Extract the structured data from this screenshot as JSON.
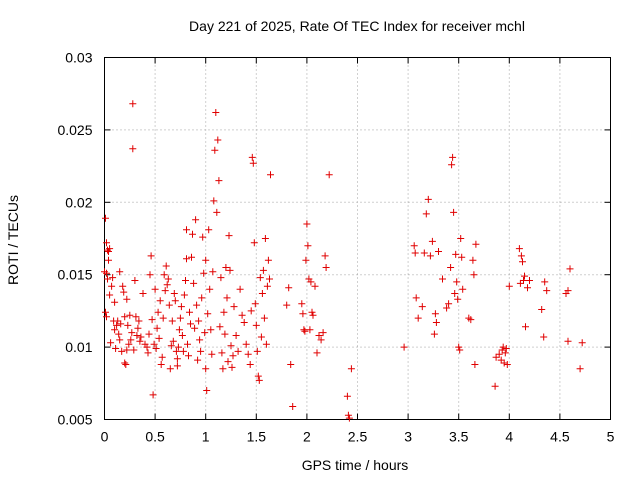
{
  "chart_data": {
    "type": "scatter",
    "title": "Day 221 of 2025, Rate Of TEC Index for receiver mchl",
    "xlabel": "GPS time / hours",
    "ylabel": "ROTI / TECUs",
    "xlim": [
      0,
      5
    ],
    "ylim": [
      0.005,
      0.03
    ],
    "grid": true,
    "marker": "plus",
    "color": "#e00000",
    "xticks": [
      {
        "value": 0,
        "label": "0"
      },
      {
        "value": 0.5,
        "label": "0.5"
      },
      {
        "value": 1,
        "label": "1"
      },
      {
        "value": 1.5,
        "label": "1.5"
      },
      {
        "value": 2,
        "label": "2"
      },
      {
        "value": 2.5,
        "label": "2.5"
      },
      {
        "value": 3,
        "label": "3"
      },
      {
        "value": 3.5,
        "label": "3.5"
      },
      {
        "value": 4,
        "label": "4"
      },
      {
        "value": 4.5,
        "label": "4.5"
      },
      {
        "value": 5,
        "label": "5"
      }
    ],
    "yticks": [
      {
        "value": 0.005,
        "label": "0.005"
      },
      {
        "value": 0.01,
        "label": "0.01"
      },
      {
        "value": 0.015,
        "label": "0.015"
      },
      {
        "value": 0.02,
        "label": "0.02"
      },
      {
        "value": 0.025,
        "label": "0.025"
      },
      {
        "value": 0.03,
        "label": "0.03"
      }
    ],
    "series": [
      {
        "name": "ROTI",
        "points": [
          [
            0.0,
            0.0152
          ],
          [
            0.01,
            0.0189
          ],
          [
            0.01,
            0.0124
          ],
          [
            0.02,
            0.0121
          ],
          [
            0.02,
            0.0151
          ],
          [
            0.02,
            0.0172
          ],
          [
            0.03,
            0.0167
          ],
          [
            0.03,
            0.0147
          ],
          [
            0.04,
            0.016
          ],
          [
            0.04,
            0.0166
          ],
          [
            0.05,
            0.0136
          ],
          [
            0.05,
            0.0168
          ],
          [
            0.06,
            0.0103
          ],
          [
            0.07,
            0.0142
          ],
          [
            0.08,
            0.0148
          ],
          [
            0.09,
            0.0118
          ],
          [
            0.1,
            0.0112
          ],
          [
            0.1,
            0.0131
          ],
          [
            0.11,
            0.0099
          ],
          [
            0.12,
            0.0115
          ],
          [
            0.13,
            0.0118
          ],
          [
            0.14,
            0.0109
          ],
          [
            0.15,
            0.0105
          ],
          [
            0.15,
            0.0152
          ],
          [
            0.16,
            0.0116
          ],
          [
            0.17,
            0.0097
          ],
          [
            0.18,
            0.0142
          ],
          [
            0.19,
            0.0138
          ],
          [
            0.2,
            0.0089
          ],
          [
            0.2,
            0.0121
          ],
          [
            0.21,
            0.0088
          ],
          [
            0.22,
            0.0133
          ],
          [
            0.22,
            0.0098
          ],
          [
            0.23,
            0.0115
          ],
          [
            0.24,
            0.0102
          ],
          [
            0.25,
            0.0122
          ],
          [
            0.26,
            0.0105
          ],
          [
            0.27,
            0.011
          ],
          [
            0.28,
            0.0268
          ],
          [
            0.28,
            0.0237
          ],
          [
            0.29,
            0.0098
          ],
          [
            0.3,
            0.0146
          ],
          [
            0.31,
            0.0121
          ],
          [
            0.32,
            0.0108
          ],
          [
            0.33,
            0.0113
          ],
          [
            0.34,
            0.0118
          ],
          [
            0.35,
            0.0104
          ],
          [
            0.36,
            0.0107
          ],
          [
            0.38,
            0.0137
          ],
          [
            0.4,
            0.0102
          ],
          [
            0.42,
            0.01
          ],
          [
            0.43,
            0.0096
          ],
          [
            0.44,
            0.0109
          ],
          [
            0.45,
            0.015
          ],
          [
            0.46,
            0.0163
          ],
          [
            0.47,
            0.0119
          ],
          [
            0.48,
            0.0067
          ],
          [
            0.49,
            0.0102
          ],
          [
            0.5,
            0.014
          ],
          [
            0.51,
            0.0099
          ],
          [
            0.52,
            0.0113
          ],
          [
            0.53,
            0.0124
          ],
          [
            0.54,
            0.0106
          ],
          [
            0.55,
            0.0132
          ],
          [
            0.56,
            0.0088
          ],
          [
            0.57,
            0.0093
          ],
          [
            0.58,
            0.012
          ],
          [
            0.59,
            0.015
          ],
          [
            0.6,
            0.0139
          ],
          [
            0.61,
            0.0156
          ],
          [
            0.62,
            0.0143
          ],
          [
            0.63,
            0.0147
          ],
          [
            0.64,
            0.0129
          ],
          [
            0.65,
            0.0085
          ],
          [
            0.66,
            0.0101
          ],
          [
            0.67,
            0.0118
          ],
          [
            0.68,
            0.0104
          ],
          [
            0.69,
            0.0137
          ],
          [
            0.7,
            0.0132
          ],
          [
            0.71,
            0.0097
          ],
          [
            0.72,
            0.0092
          ],
          [
            0.72,
            0.0087
          ],
          [
            0.73,
            0.01
          ],
          [
            0.74,
            0.0112
          ],
          [
            0.75,
            0.012
          ],
          [
            0.76,
            0.0128
          ],
          [
            0.77,
            0.0108
          ],
          [
            0.78,
            0.0097
          ],
          [
            0.79,
            0.0136
          ],
          [
            0.8,
            0.0146
          ],
          [
            0.81,
            0.0181
          ],
          [
            0.81,
            0.0161
          ],
          [
            0.82,
            0.0102
          ],
          [
            0.83,
            0.0094
          ],
          [
            0.84,
            0.0124
          ],
          [
            0.85,
            0.0116
          ],
          [
            0.86,
            0.0162
          ],
          [
            0.87,
            0.0178
          ],
          [
            0.88,
            0.0144
          ],
          [
            0.89,
            0.0113
          ],
          [
            0.9,
            0.0188
          ],
          [
            0.91,
            0.0129
          ],
          [
            0.92,
            0.0091
          ],
          [
            0.93,
            0.0118
          ],
          [
            0.94,
            0.0105
          ],
          [
            0.95,
            0.0097
          ],
          [
            0.96,
            0.0134
          ],
          [
            0.97,
            0.0176
          ],
          [
            0.98,
            0.0151
          ],
          [
            0.99,
            0.011
          ],
          [
            1.0,
            0.016
          ],
          [
            1.0,
            0.0085
          ],
          [
            1.01,
            0.007
          ],
          [
            1.02,
            0.0123
          ],
          [
            1.03,
            0.0181
          ],
          [
            1.04,
            0.014
          ],
          [
            1.05,
            0.0112
          ],
          [
            1.06,
            0.0095
          ],
          [
            1.07,
            0.0152
          ],
          [
            1.08,
            0.0201
          ],
          [
            1.09,
            0.0236
          ],
          [
            1.1,
            0.0262
          ],
          [
            1.11,
            0.0193
          ],
          [
            1.12,
            0.0243
          ],
          [
            1.13,
            0.0215
          ],
          [
            1.14,
            0.0114
          ],
          [
            1.15,
            0.0148
          ],
          [
            1.16,
            0.0096
          ],
          [
            1.17,
            0.0085
          ],
          [
            1.18,
            0.0124
          ],
          [
            1.19,
            0.0109
          ],
          [
            1.2,
            0.0155
          ],
          [
            1.21,
            0.0134
          ],
          [
            1.22,
            0.009
          ],
          [
            1.23,
            0.0177
          ],
          [
            1.24,
            0.0153
          ],
          [
            1.25,
            0.0101
          ],
          [
            1.26,
            0.0086
          ],
          [
            1.27,
            0.0094
          ],
          [
            1.28,
            0.0128
          ],
          [
            1.3,
            0.0108
          ],
          [
            1.32,
            0.0097
          ],
          [
            1.34,
            0.014
          ],
          [
            1.36,
            0.0122
          ],
          [
            1.38,
            0.0117
          ],
          [
            1.4,
            0.0102
          ],
          [
            1.42,
            0.0095
          ],
          [
            1.44,
            0.0088
          ],
          [
            1.45,
            0.0125
          ],
          [
            1.46,
            0.0231
          ],
          [
            1.47,
            0.0227
          ],
          [
            1.48,
            0.0172
          ],
          [
            1.49,
            0.013
          ],
          [
            1.5,
            0.0115
          ],
          [
            1.51,
            0.0097
          ],
          [
            1.52,
            0.008
          ],
          [
            1.53,
            0.0077
          ],
          [
            1.54,
            0.0148
          ],
          [
            1.55,
            0.0107
          ],
          [
            1.56,
            0.0137
          ],
          [
            1.57,
            0.0153
          ],
          [
            1.58,
            0.012
          ],
          [
            1.59,
            0.0175
          ],
          [
            1.6,
            0.0102
          ],
          [
            1.61,
            0.0142
          ],
          [
            1.62,
            0.016
          ],
          [
            1.63,
            0.0147
          ],
          [
            1.64,
            0.0219
          ],
          [
            1.8,
            0.0129
          ],
          [
            1.82,
            0.0141
          ],
          [
            1.84,
            0.0088
          ],
          [
            1.86,
            0.0059
          ],
          [
            1.95,
            0.013
          ],
          [
            1.96,
            0.0123
          ],
          [
            1.97,
            0.0112
          ],
          [
            1.98,
            0.0111
          ],
          [
            1.99,
            0.016
          ],
          [
            2.0,
            0.0185
          ],
          [
            2.01,
            0.017
          ],
          [
            2.02,
            0.0147
          ],
          [
            2.03,
            0.0112
          ],
          [
            2.04,
            0.0145
          ],
          [
            2.05,
            0.0124
          ],
          [
            2.06,
            0.0122
          ],
          [
            2.08,
            0.0142
          ],
          [
            2.1,
            0.0096
          ],
          [
            2.12,
            0.0108
          ],
          [
            2.14,
            0.0105
          ],
          [
            2.16,
            0.011
          ],
          [
            2.18,
            0.0163
          ],
          [
            2.19,
            0.0155
          ],
          [
            2.22,
            0.0219
          ],
          [
            2.4,
            0.0066
          ],
          [
            2.41,
            0.0053
          ],
          [
            2.42,
            0.0051
          ],
          [
            2.44,
            0.0085
          ],
          [
            2.96,
            0.01
          ],
          [
            3.06,
            0.017
          ],
          [
            3.07,
            0.0165
          ],
          [
            3.08,
            0.0134
          ],
          [
            3.1,
            0.012
          ],
          [
            3.14,
            0.0128
          ],
          [
            3.16,
            0.0165
          ],
          [
            3.18,
            0.0192
          ],
          [
            3.2,
            0.0202
          ],
          [
            3.22,
            0.0163
          ],
          [
            3.24,
            0.0173
          ],
          [
            3.26,
            0.0109
          ],
          [
            3.27,
            0.0123
          ],
          [
            3.28,
            0.0117
          ],
          [
            3.3,
            0.0166
          ],
          [
            3.34,
            0.0147
          ],
          [
            3.38,
            0.0127
          ],
          [
            3.4,
            0.013
          ],
          [
            3.42,
            0.0155
          ],
          [
            3.43,
            0.0226
          ],
          [
            3.44,
            0.0231
          ],
          [
            3.45,
            0.0193
          ],
          [
            3.46,
            0.0137
          ],
          [
            3.47,
            0.0164
          ],
          [
            3.48,
            0.0145
          ],
          [
            3.49,
            0.0133
          ],
          [
            3.5,
            0.01
          ],
          [
            3.51,
            0.0098
          ],
          [
            3.52,
            0.0175
          ],
          [
            3.53,
            0.0162
          ],
          [
            3.54,
            0.014
          ],
          [
            3.6,
            0.012
          ],
          [
            3.62,
            0.0119
          ],
          [
            3.64,
            0.016
          ],
          [
            3.65,
            0.015
          ],
          [
            3.66,
            0.0088
          ],
          [
            3.67,
            0.0171
          ],
          [
            3.86,
            0.0073
          ],
          [
            3.87,
            0.0093
          ],
          [
            3.9,
            0.0095
          ],
          [
            3.92,
            0.0091
          ],
          [
            3.93,
            0.0098
          ],
          [
            3.94,
            0.01
          ],
          [
            3.95,
            0.0089
          ],
          [
            3.96,
            0.0096
          ],
          [
            3.97,
            0.0099
          ],
          [
            3.98,
            0.0088
          ],
          [
            4.0,
            0.0142
          ],
          [
            4.1,
            0.0168
          ],
          [
            4.11,
            0.0144
          ],
          [
            4.12,
            0.0163
          ],
          [
            4.13,
            0.0159
          ],
          [
            4.14,
            0.0146
          ],
          [
            4.15,
            0.0149
          ],
          [
            4.16,
            0.0114
          ],
          [
            4.18,
            0.0141
          ],
          [
            4.2,
            0.0146
          ],
          [
            4.32,
            0.0126
          ],
          [
            4.34,
            0.0107
          ],
          [
            4.35,
            0.0145
          ],
          [
            4.37,
            0.0139
          ],
          [
            4.56,
            0.0137
          ],
          [
            4.58,
            0.0139
          ],
          [
            4.6,
            0.0154
          ],
          [
            4.7,
            0.0085
          ],
          [
            4.72,
            0.0103
          ],
          [
            4.58,
            0.0104
          ]
        ]
      }
    ]
  }
}
